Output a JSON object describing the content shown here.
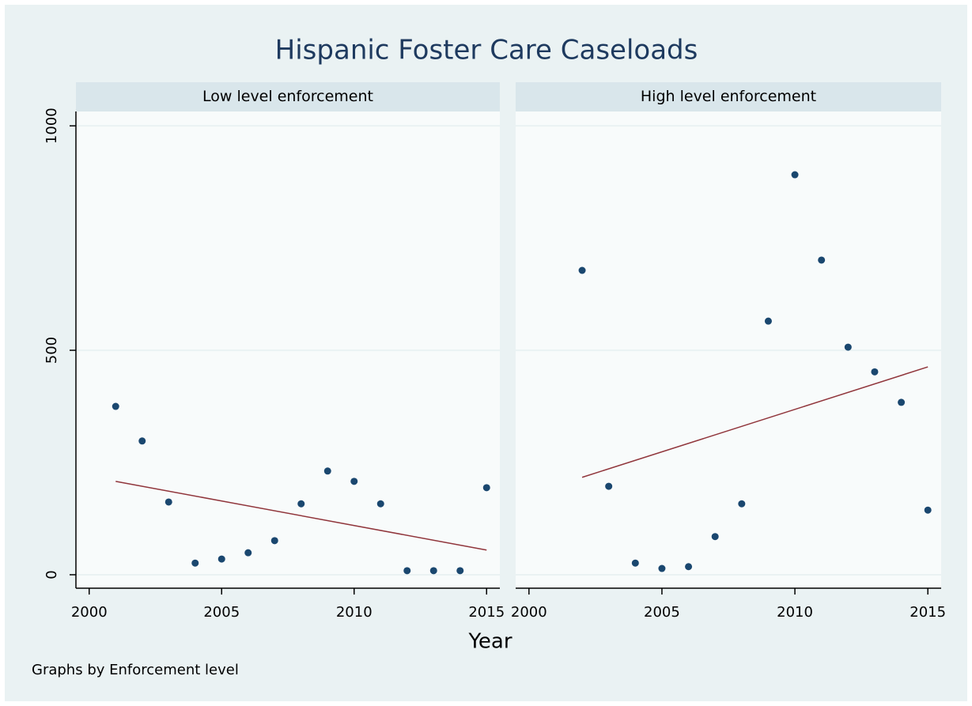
{
  "title": "Hispanic Foster Care Caseloads",
  "x_label": "Year",
  "note": "Graphs by Enforcement level",
  "chart_data": [
    {
      "type": "scatter",
      "title": "Low level enforcement",
      "xlim": [
        1999.5,
        2015.5
      ],
      "ylim": [
        -30,
        1032
      ],
      "xticks": [
        2000,
        2005,
        2010,
        2015
      ],
      "yticks": [
        0,
        500,
        1000
      ],
      "grid": true,
      "series": [
        {
          "type": "scatter",
          "color": "#1a476f",
          "x": [
            2001,
            2002,
            2003,
            2004,
            2005,
            2006,
            2007,
            2008,
            2009,
            2010,
            2011,
            2012,
            2013,
            2014,
            2015
          ],
          "values": [
            375,
            298,
            162,
            26,
            35,
            49,
            76,
            158,
            231,
            208,
            158,
            9,
            9,
            9,
            194
          ]
        },
        {
          "type": "line",
          "color": "#90353b",
          "x": [
            2001,
            2015
          ],
          "values": [
            208,
            55
          ]
        }
      ]
    },
    {
      "type": "scatter",
      "title": "High level enforcement",
      "xlim": [
        1999.5,
        2015.5
      ],
      "ylim": [
        -30,
        1032
      ],
      "xticks": [
        2000,
        2005,
        2010,
        2015
      ],
      "yticks": [
        0,
        500,
        1000
      ],
      "grid": true,
      "series": [
        {
          "type": "scatter",
          "color": "#1a476f",
          "x": [
            2002,
            2003,
            2004,
            2005,
            2006,
            2007,
            2008,
            2009,
            2010,
            2011,
            2012,
            2013,
            2014,
            2015
          ],
          "values": [
            678,
            197,
            26,
            14,
            18,
            85,
            158,
            565,
            891,
            701,
            507,
            452,
            384,
            144
          ]
        },
        {
          "type": "line",
          "color": "#90353b",
          "x": [
            2002,
            2015
          ],
          "values": [
            217,
            463
          ]
        }
      ]
    }
  ]
}
